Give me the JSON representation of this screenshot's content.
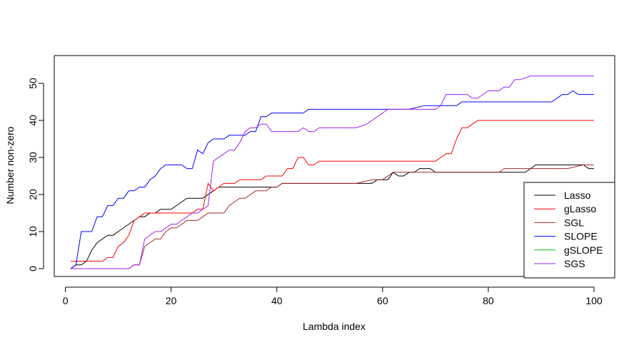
{
  "chart_data": {
    "type": "line",
    "title": "",
    "xlabel": "Lambda index",
    "ylabel": "Number non-zero",
    "xlim": [
      1,
      100
    ],
    "ylim": [
      0,
      52
    ],
    "xticks": [
      0,
      20,
      40,
      60,
      80,
      100
    ],
    "yticks": [
      0,
      10,
      20,
      30,
      40,
      50
    ],
    "grid": false,
    "legend_position": "bottom-right",
    "series": [
      {
        "name": "Lasso",
        "color": "#000000",
        "points": [
          [
            1,
            0
          ],
          [
            2,
            1
          ],
          [
            3,
            1
          ],
          [
            4,
            2
          ],
          [
            5,
            5
          ],
          [
            6,
            7
          ],
          [
            7,
            8
          ],
          [
            8,
            9
          ],
          [
            9,
            9
          ],
          [
            10,
            10
          ],
          [
            12,
            12
          ],
          [
            13,
            13
          ],
          [
            14,
            14
          ],
          [
            15,
            14
          ],
          [
            16,
            15
          ],
          [
            17,
            15
          ],
          [
            18,
            16
          ],
          [
            19,
            16
          ],
          [
            20,
            16
          ],
          [
            21,
            17
          ],
          [
            22,
            18
          ],
          [
            23,
            19
          ],
          [
            24,
            19
          ],
          [
            25,
            19
          ],
          [
            26,
            19
          ],
          [
            27,
            20
          ],
          [
            28,
            21
          ],
          [
            29,
            22
          ],
          [
            30,
            22
          ],
          [
            35,
            22
          ],
          [
            40,
            22
          ],
          [
            41,
            23
          ],
          [
            45,
            23
          ],
          [
            50,
            23
          ],
          [
            55,
            23
          ],
          [
            58,
            23
          ],
          [
            59,
            24
          ],
          [
            61,
            24
          ],
          [
            62,
            26
          ],
          [
            63,
            25
          ],
          [
            64,
            25
          ],
          [
            65,
            26
          ],
          [
            66,
            26
          ],
          [
            67,
            27
          ],
          [
            68,
            27
          ],
          [
            69,
            27
          ],
          [
            70,
            26
          ],
          [
            75,
            26
          ],
          [
            80,
            26
          ],
          [
            85,
            26
          ],
          [
            87,
            26
          ],
          [
            88,
            27
          ],
          [
            89,
            28
          ],
          [
            90,
            28
          ],
          [
            95,
            28
          ],
          [
            98,
            28
          ],
          [
            99,
            27
          ],
          [
            100,
            27
          ]
        ]
      },
      {
        "name": "gLasso",
        "color": "#ff0000",
        "points": [
          [
            1,
            2
          ],
          [
            2,
            2
          ],
          [
            5,
            2
          ],
          [
            6,
            2
          ],
          [
            7,
            2
          ],
          [
            8,
            3
          ],
          [
            9,
            3
          ],
          [
            10,
            6
          ],
          [
            11,
            7
          ],
          [
            12,
            9
          ],
          [
            13,
            13
          ],
          [
            14,
            14
          ],
          [
            15,
            15
          ],
          [
            16,
            15
          ],
          [
            20,
            15
          ],
          [
            24,
            15
          ],
          [
            25,
            16
          ],
          [
            26,
            16
          ],
          [
            27,
            23
          ],
          [
            28,
            21
          ],
          [
            29,
            22
          ],
          [
            30,
            23
          ],
          [
            31,
            23
          ],
          [
            32,
            23
          ],
          [
            33,
            24
          ],
          [
            35,
            24
          ],
          [
            37,
            24
          ],
          [
            38,
            25
          ],
          [
            40,
            25
          ],
          [
            41,
            25
          ],
          [
            42,
            27
          ],
          [
            43,
            27
          ],
          [
            44,
            30
          ],
          [
            45,
            30
          ],
          [
            46,
            28
          ],
          [
            47,
            28
          ],
          [
            48,
            29
          ],
          [
            50,
            29
          ],
          [
            55,
            29
          ],
          [
            60,
            29
          ],
          [
            65,
            29
          ],
          [
            70,
            29
          ],
          [
            71,
            30
          ],
          [
            72,
            31
          ],
          [
            73,
            31
          ],
          [
            74,
            35
          ],
          [
            75,
            38
          ],
          [
            76,
            38
          ],
          [
            77,
            39
          ],
          [
            78,
            40
          ],
          [
            80,
            40
          ],
          [
            85,
            40
          ],
          [
            90,
            40
          ],
          [
            95,
            40
          ],
          [
            100,
            40
          ]
        ]
      },
      {
        "name": "SGL",
        "color": "#a52a2a",
        "points": [
          [
            1,
            0
          ],
          [
            5,
            0
          ],
          [
            10,
            0
          ],
          [
            11,
            0
          ],
          [
            12,
            0
          ],
          [
            13,
            1
          ],
          [
            14,
            1
          ],
          [
            15,
            6
          ],
          [
            16,
            7
          ],
          [
            17,
            8
          ],
          [
            18,
            8
          ],
          [
            19,
            10
          ],
          [
            20,
            11
          ],
          [
            21,
            11
          ],
          [
            22,
            12
          ],
          [
            23,
            13
          ],
          [
            24,
            13
          ],
          [
            25,
            13
          ],
          [
            26,
            14
          ],
          [
            27,
            15
          ],
          [
            28,
            15
          ],
          [
            30,
            15
          ],
          [
            31,
            17
          ],
          [
            32,
            18
          ],
          [
            33,
            19
          ],
          [
            34,
            19
          ],
          [
            35,
            20
          ],
          [
            36,
            21
          ],
          [
            37,
            21
          ],
          [
            38,
            21
          ],
          [
            39,
            22
          ],
          [
            40,
            22
          ],
          [
            41,
            23
          ],
          [
            42,
            23
          ],
          [
            45,
            23
          ],
          [
            50,
            23
          ],
          [
            55,
            23
          ],
          [
            58,
            24
          ],
          [
            59,
            24
          ],
          [
            60,
            24
          ],
          [
            61,
            25
          ],
          [
            62,
            26
          ],
          [
            63,
            26
          ],
          [
            64,
            26
          ],
          [
            65,
            26
          ],
          [
            70,
            26
          ],
          [
            75,
            26
          ],
          [
            80,
            26
          ],
          [
            82,
            26
          ],
          [
            83,
            27
          ],
          [
            85,
            27
          ],
          [
            90,
            27
          ],
          [
            95,
            27
          ],
          [
            98,
            28
          ],
          [
            99,
            28
          ],
          [
            100,
            28
          ]
        ]
      },
      {
        "name": "SLOPE",
        "color": "#0000ff",
        "points": [
          [
            1,
            0
          ],
          [
            2,
            1
          ],
          [
            3,
            10
          ],
          [
            4,
            10
          ],
          [
            5,
            10
          ],
          [
            6,
            14
          ],
          [
            7,
            14
          ],
          [
            8,
            17
          ],
          [
            9,
            17
          ],
          [
            10,
            19
          ],
          [
            11,
            19
          ],
          [
            12,
            21
          ],
          [
            13,
            21
          ],
          [
            14,
            22
          ],
          [
            15,
            22
          ],
          [
            16,
            24
          ],
          [
            17,
            25
          ],
          [
            18,
            27
          ],
          [
            19,
            28
          ],
          [
            20,
            28
          ],
          [
            21,
            28
          ],
          [
            22,
            28
          ],
          [
            23,
            27
          ],
          [
            24,
            27
          ],
          [
            25,
            32
          ],
          [
            26,
            31
          ],
          [
            27,
            34
          ],
          [
            28,
            35
          ],
          [
            29,
            35
          ],
          [
            30,
            35
          ],
          [
            31,
            36
          ],
          [
            32,
            36
          ],
          [
            33,
            36
          ],
          [
            34,
            36
          ],
          [
            35,
            37
          ],
          [
            36,
            37
          ],
          [
            37,
            41
          ],
          [
            38,
            41
          ],
          [
            39,
            42
          ],
          [
            40,
            42
          ],
          [
            45,
            42
          ],
          [
            46,
            43
          ],
          [
            50,
            43
          ],
          [
            55,
            43
          ],
          [
            60,
            43
          ],
          [
            65,
            43
          ],
          [
            68,
            44
          ],
          [
            70,
            44
          ],
          [
            72,
            44
          ],
          [
            73,
            44
          ],
          [
            74,
            44
          ],
          [
            75,
            45
          ],
          [
            80,
            45
          ],
          [
            85,
            45
          ],
          [
            90,
            45
          ],
          [
            91,
            45
          ],
          [
            92,
            45
          ],
          [
            93,
            46
          ],
          [
            94,
            47
          ],
          [
            95,
            47
          ],
          [
            96,
            48
          ],
          [
            97,
            47
          ],
          [
            98,
            47
          ],
          [
            100,
            47
          ]
        ]
      },
      {
        "name": "gSLOPE",
        "color": "#00cd00",
        "points": []
      },
      {
        "name": "SGS",
        "color": "#a020f0",
        "points": [
          [
            1,
            0
          ],
          [
            5,
            0
          ],
          [
            10,
            0
          ],
          [
            12,
            0
          ],
          [
            13,
            1
          ],
          [
            14,
            1
          ],
          [
            15,
            8
          ],
          [
            16,
            9
          ],
          [
            17,
            10
          ],
          [
            18,
            10
          ],
          [
            19,
            11
          ],
          [
            20,
            12
          ],
          [
            21,
            12
          ],
          [
            22,
            13
          ],
          [
            23,
            14
          ],
          [
            24,
            15
          ],
          [
            25,
            15
          ],
          [
            26,
            16
          ],
          [
            27,
            17
          ],
          [
            28,
            29
          ],
          [
            29,
            30
          ],
          [
            30,
            31
          ],
          [
            31,
            32
          ],
          [
            32,
            32
          ],
          [
            33,
            34
          ],
          [
            34,
            37
          ],
          [
            35,
            38
          ],
          [
            36,
            38
          ],
          [
            37,
            39
          ],
          [
            38,
            39
          ],
          [
            39,
            37
          ],
          [
            40,
            37
          ],
          [
            42,
            37
          ],
          [
            44,
            37
          ],
          [
            45,
            38
          ],
          [
            46,
            37
          ],
          [
            47,
            37
          ],
          [
            48,
            38
          ],
          [
            50,
            38
          ],
          [
            55,
            38
          ],
          [
            57,
            39
          ],
          [
            58,
            40
          ],
          [
            59,
            41
          ],
          [
            60,
            42
          ],
          [
            61,
            43
          ],
          [
            62,
            43
          ],
          [
            65,
            43
          ],
          [
            70,
            43
          ],
          [
            71,
            44
          ],
          [
            72,
            47
          ],
          [
            73,
            47
          ],
          [
            76,
            47
          ],
          [
            77,
            46
          ],
          [
            78,
            46
          ],
          [
            79,
            47
          ],
          [
            80,
            48
          ],
          [
            82,
            48
          ],
          [
            83,
            49
          ],
          [
            84,
            49
          ],
          [
            85,
            51
          ],
          [
            86,
            51
          ],
          [
            88,
            52
          ],
          [
            90,
            52
          ],
          [
            95,
            52
          ],
          [
            100,
            52
          ]
        ]
      }
    ]
  }
}
